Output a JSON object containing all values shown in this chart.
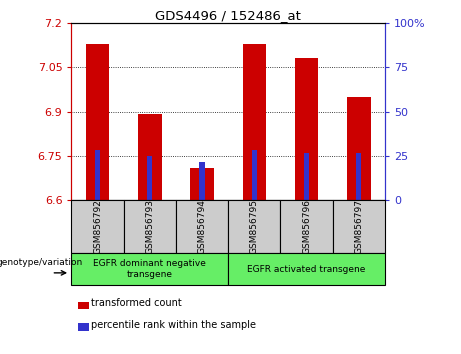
{
  "title": "GDS4496 / 152486_at",
  "samples": [
    "GSM856792",
    "GSM856793",
    "GSM856794",
    "GSM856795",
    "GSM856796",
    "GSM856797"
  ],
  "red_values": [
    7.13,
    6.89,
    6.71,
    7.13,
    7.08,
    6.95
  ],
  "blue_values": [
    6.77,
    6.75,
    6.73,
    6.77,
    6.76,
    6.76
  ],
  "ylim_left": [
    6.6,
    7.2
  ],
  "yticks_left": [
    6.6,
    6.75,
    6.9,
    7.05,
    7.2
  ],
  "yticks_right": [
    0,
    25,
    50,
    75,
    100
  ],
  "left_color": "#cc0000",
  "right_color": "#3333cc",
  "bar_width": 0.45,
  "blue_bar_width": 0.1,
  "group1_label": "EGFR dominant negative\ntransgene",
  "group2_label": "EGFR activated transgene",
  "legend_red": "transformed count",
  "legend_blue": "percentile rank within the sample",
  "genotype_label": "genotype/variation",
  "group_bg_color": "#66ee66",
  "sample_bg_color": "#cccccc",
  "base_value": 6.6
}
